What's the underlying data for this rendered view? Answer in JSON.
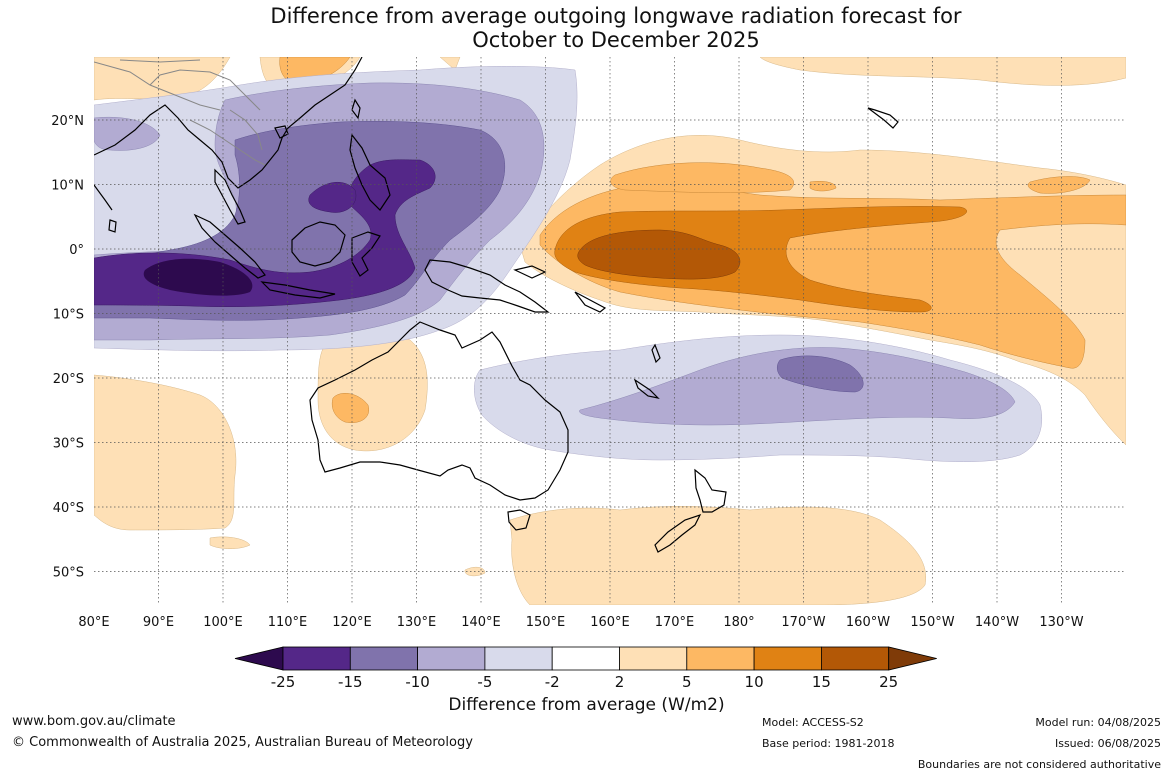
{
  "title": {
    "line1": "Difference from average outgoing longwave radiation forecast for",
    "line2": "October to December 2025"
  },
  "map": {
    "lon_labels": [
      "80°E",
      "90°E",
      "100°E",
      "110°E",
      "120°E",
      "130°E",
      "140°E",
      "150°E",
      "160°E",
      "170°E",
      "180°",
      "170°W",
      "160°W",
      "150°W",
      "140°W",
      "130°W"
    ],
    "lat_labels": [
      "20°N",
      "10°N",
      "0°",
      "10°S",
      "20°S",
      "30°S",
      "40°S",
      "50°S"
    ]
  },
  "legend": {
    "title": "Difference from average (W/m2)",
    "ticks": [
      "-25",
      "-15",
      "-10",
      "-5",
      "-2",
      "2",
      "5",
      "10",
      "15",
      "25"
    ],
    "colors": {
      "below_min": "#2d0a4e",
      "bins": [
        "#542788",
        "#8073ac",
        "#b2abd2",
        "#d8daeb",
        "#ffffff",
        "#fee0b6",
        "#fdb863",
        "#e08214",
        "#b35806"
      ],
      "above_max": "#7f3b08"
    }
  },
  "footer": {
    "website": "www.bom.gov.au/climate",
    "copyright": "© Commonwealth of Australia 2025, Australian Bureau of Meteorology",
    "model": "Model: ACCESS-S2",
    "base_period": "Base period: 1981-2018",
    "model_run": "Model run: 04/08/2025",
    "issued": "Issued: 06/08/2025",
    "disclaimer": "Boundaries are not considered authoritative"
  }
}
